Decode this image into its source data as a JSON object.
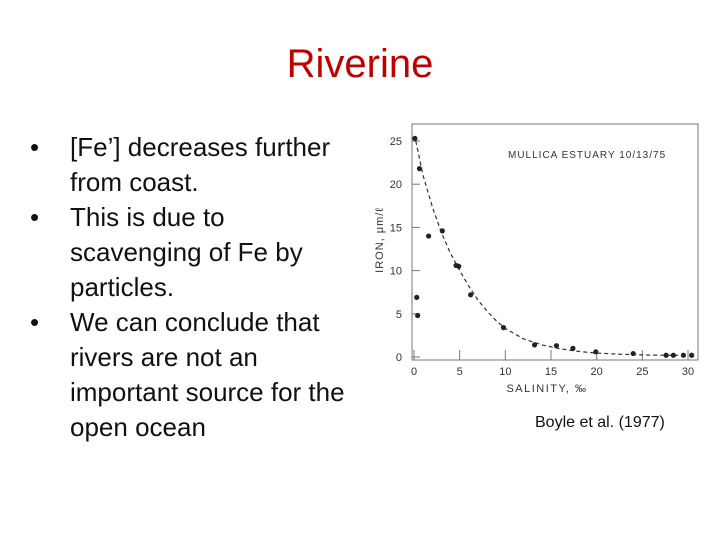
{
  "slide": {
    "title": "Riverine",
    "bullets": [
      "[Fe’] decreases further from coast.",
      "This is due to scavenging of Fe by particles.",
      "We can conclude that rivers are not an important source for the open ocean"
    ],
    "bullet_symbol": "•",
    "citation": "Boyle et al. (1977)",
    "title_color": "#c00000"
  },
  "chart_data": {
    "type": "scatter",
    "title": "MULLICA ESTUARY 10/13/75",
    "xlabel": "SALINITY, ‰",
    "ylabel": "IRON, μm/ℓ",
    "xlim": [
      0,
      30
    ],
    "ylim": [
      0,
      25
    ],
    "xticks": [
      0,
      5,
      10,
      15,
      20,
      25,
      30
    ],
    "yticks": [
      0,
      5,
      10,
      15,
      20,
      25
    ],
    "grid": false,
    "series": [
      {
        "points": [
          [
            0.1,
            25.3
          ],
          [
            0.3,
            6.9
          ],
          [
            0.4,
            4.8
          ],
          [
            0.6,
            21.8
          ],
          [
            1.6,
            14.0
          ],
          [
            3.1,
            14.6
          ],
          [
            4.6,
            10.6
          ],
          [
            4.9,
            10.5
          ],
          [
            6.2,
            7.2
          ],
          [
            9.8,
            3.4
          ],
          [
            13.2,
            1.4
          ],
          [
            15.6,
            1.3
          ],
          [
            17.4,
            1.0
          ],
          [
            19.9,
            0.6
          ],
          [
            24.0,
            0.4
          ],
          [
            27.6,
            0.2
          ],
          [
            28.4,
            0.2
          ],
          [
            29.5,
            0.2
          ],
          [
            30.4,
            0.2
          ]
        ]
      }
    ],
    "fit_curve": [
      [
        0.2,
        25.0
      ],
      [
        1,
        21.0
      ],
      [
        2,
        17.4
      ],
      [
        3,
        14.4
      ],
      [
        4,
        12.0
      ],
      [
        5,
        10.0
      ],
      [
        6,
        8.2
      ],
      [
        7,
        6.6
      ],
      [
        8,
        5.3
      ],
      [
        9,
        4.2
      ],
      [
        10,
        3.3
      ],
      [
        12,
        2.1
      ],
      [
        14,
        1.4
      ],
      [
        16,
        0.95
      ],
      [
        18,
        0.65
      ],
      [
        20,
        0.45
      ],
      [
        23,
        0.3
      ],
      [
        26,
        0.22
      ],
      [
        30,
        0.18
      ]
    ]
  }
}
